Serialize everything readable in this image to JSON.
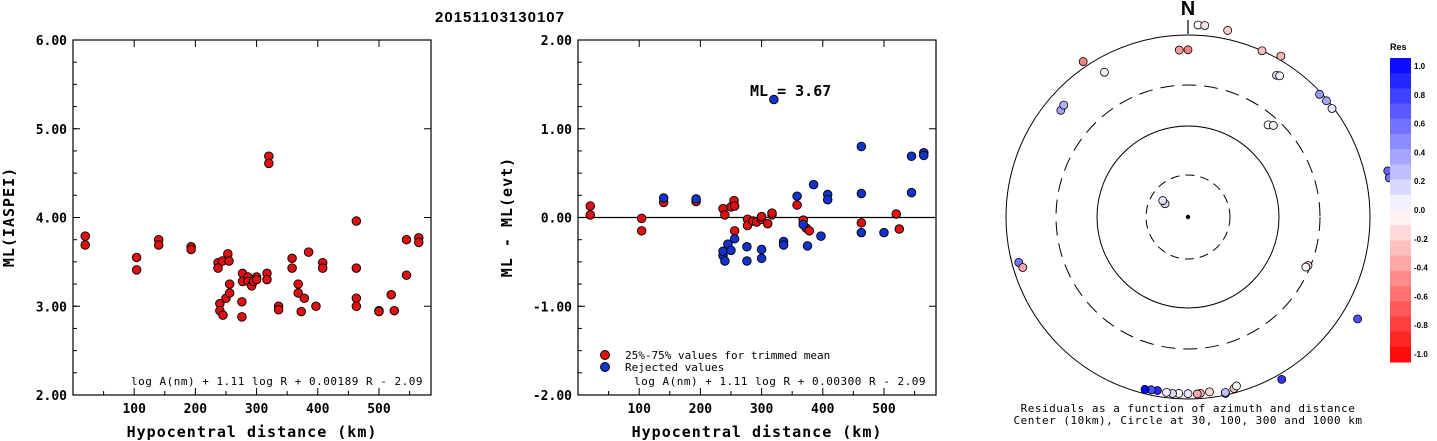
{
  "title": "20151103130107",
  "chart_data": [
    {
      "type": "scatter",
      "panel": "left",
      "xlabel": "Hypocentral distance (km)",
      "ylabel": "ML(IASPEI)",
      "xlim": [
        0,
        585
      ],
      "ylim": [
        2.0,
        6.0
      ],
      "xticks": [
        "100",
        "200",
        "300",
        "400",
        "500"
      ],
      "yticks": [
        "2.00",
        "3.00",
        "4.00",
        "5.00",
        "6.00"
      ],
      "formula": "log A(nm) + 1.11 log R + 0.00189 R - 2.09",
      "color": "#dd1111",
      "series": [
        {
          "points": [
            [
              20,
              3.79
            ],
            [
              20,
              3.69
            ],
            [
              104,
              3.55
            ],
            [
              104,
              3.41
            ],
            [
              140,
              3.75
            ],
            [
              140,
              3.69
            ],
            [
              193,
              3.67
            ],
            [
              193,
              3.64
            ],
            [
              237,
              3.49
            ],
            [
              237,
              3.43
            ],
            [
              240,
              3.03
            ],
            [
              240,
              2.95
            ],
            [
              244,
              3.51
            ],
            [
              245,
              2.9
            ],
            [
              250,
              3.09
            ],
            [
              253,
              3.59
            ],
            [
              255,
              3.51
            ],
            [
              256,
              3.25
            ],
            [
              256,
              3.15
            ],
            [
              276,
              3.05
            ],
            [
              276,
              2.88
            ],
            [
              277,
              3.37
            ],
            [
              277,
              3.28
            ],
            [
              286,
              3.33
            ],
            [
              286,
              3.28
            ],
            [
              292,
              3.23
            ],
            [
              295,
              3.28
            ],
            [
              300,
              3.33
            ],
            [
              300,
              3.3
            ],
            [
              317,
              3.37
            ],
            [
              317,
              3.3
            ],
            [
              320,
              4.69
            ],
            [
              320,
              4.61
            ],
            [
              336,
              3.0
            ],
            [
              336,
              2.96
            ],
            [
              358,
              3.54
            ],
            [
              358,
              3.43
            ],
            [
              368,
              3.25
            ],
            [
              368,
              3.15
            ],
            [
              373,
              2.94
            ],
            [
              378,
              3.09
            ],
            [
              385,
              3.61
            ],
            [
              397,
              3.0
            ],
            [
              408,
              3.49
            ],
            [
              408,
              3.43
            ],
            [
              463,
              3.96
            ],
            [
              463,
              3.43
            ],
            [
              463,
              3.09
            ],
            [
              463,
              3.0
            ],
            [
              500,
              2.95
            ],
            [
              500,
              2.94
            ],
            [
              520,
              3.13
            ],
            [
              525,
              2.95
            ],
            [
              545,
              3.75
            ],
            [
              545,
              3.35
            ],
            [
              565,
              3.77
            ],
            [
              565,
              3.72
            ]
          ]
        }
      ]
    },
    {
      "type": "scatter",
      "panel": "middle",
      "xlabel": "Hypocentral distance (km)",
      "ylabel": "ML - ML(evt)",
      "xlim": [
        0,
        585
      ],
      "ylim": [
        -2.0,
        2.0
      ],
      "xticks": [
        "100",
        "200",
        "300",
        "400",
        "500"
      ],
      "yticks": [
        "-2.00",
        "-1.00",
        "0.00",
        "1.00",
        "2.00"
      ],
      "reference_line": 0.0,
      "annotation": "ML = 3.67",
      "formula": "log A(nm) + 1.11 log R + 0.00300 R - 2.09",
      "series": [
        {
          "name": "25%-75% values for trimmed mean",
          "color": "#dd1111",
          "points": [
            [
              20,
              0.13
            ],
            [
              20,
              0.03
            ],
            [
              104,
              -0.01
            ],
            [
              104,
              -0.15
            ],
            [
              140,
              0.17
            ],
            [
              193,
              0.18
            ],
            [
              237,
              0.1
            ],
            [
              240,
              0.03
            ],
            [
              250,
              0.12
            ],
            [
              255,
              0.19
            ],
            [
              256,
              0.13
            ],
            [
              256,
              -0.15
            ],
            [
              277,
              -0.02
            ],
            [
              277,
              -0.09
            ],
            [
              286,
              -0.04
            ],
            [
              292,
              -0.05
            ],
            [
              300,
              -0.02
            ],
            [
              300,
              0.01
            ],
            [
              310,
              -0.07
            ],
            [
              317,
              0.03
            ],
            [
              317,
              0.05
            ],
            [
              358,
              0.14
            ],
            [
              368,
              -0.03
            ],
            [
              373,
              -0.12
            ],
            [
              378,
              -0.15
            ],
            [
              463,
              -0.06
            ],
            [
              520,
              0.04
            ],
            [
              525,
              -0.13
            ]
          ]
        },
        {
          "name": "Rejected values",
          "color": "#1133cc",
          "points": [
            [
              140,
              0.22
            ],
            [
              193,
              0.21
            ],
            [
              237,
              -0.43
            ],
            [
              237,
              -0.38
            ],
            [
              240,
              -0.49
            ],
            [
              245,
              -0.3
            ],
            [
              250,
              -0.37
            ],
            [
              256,
              -0.24
            ],
            [
              276,
              -0.33
            ],
            [
              276,
              -0.49
            ],
            [
              300,
              -0.36
            ],
            [
              300,
              -0.46
            ],
            [
              320,
              1.33
            ],
            [
              336,
              -0.27
            ],
            [
              336,
              -0.31
            ],
            [
              358,
              0.24
            ],
            [
              368,
              -0.08
            ],
            [
              375,
              -0.32
            ],
            [
              385,
              0.37
            ],
            [
              397,
              -0.21
            ],
            [
              408,
              0.26
            ],
            [
              408,
              0.2
            ],
            [
              463,
              0.8
            ],
            [
              463,
              0.27
            ],
            [
              463,
              -0.17
            ],
            [
              500,
              -0.17
            ],
            [
              545,
              0.69
            ],
            [
              545,
              0.28
            ],
            [
              565,
              0.73
            ],
            [
              565,
              0.7
            ]
          ]
        }
      ]
    },
    {
      "type": "scatter",
      "panel": "polar",
      "projection": "azimuth-distance",
      "north_label": "N",
      "caption_line1": "Residuals as a function of azimuth and distance",
      "caption_line2": "Center (10km), Circle at 30, 100, 300 and 1000 km",
      "colorbar_title": "Res",
      "colorbar_ticks": [
        "1.0",
        "0.8",
        "0.6",
        "0.4",
        "0.2",
        "0.0",
        "-0.2",
        "-0.4",
        "-0.6",
        "-0.8",
        "-1.0"
      ],
      "circles_km": [
        30,
        100,
        300,
        1000
      ],
      "points": [
        {
          "az": 3,
          "dist": 1300,
          "res": 0.0
        },
        {
          "az": 5,
          "dist": 1300,
          "res": -0.1
        },
        {
          "az": 12,
          "dist": 1250,
          "res": -0.2
        },
        {
          "az": 357,
          "dist": 700,
          "res": -0.4
        },
        {
          "az": 0,
          "dist": 700,
          "res": -0.5
        },
        {
          "az": 24,
          "dist": 1000,
          "res": -0.25
        },
        {
          "az": 30,
          "dist": 1100,
          "res": -0.3
        },
        {
          "az": 32,
          "dist": 700,
          "res": 0.15
        },
        {
          "az": 33,
          "dist": 720,
          "res": 0.05
        },
        {
          "az": 326,
          "dist": 1150,
          "res": -0.5
        },
        {
          "az": 330,
          "dist": 700,
          "res": 0.05
        },
        {
          "az": 47,
          "dist": 950,
          "res": 0.4
        },
        {
          "az": 50,
          "dist": 970,
          "res": 0.35
        },
        {
          "az": 53,
          "dist": 960,
          "res": 0.1
        },
        {
          "az": 41,
          "dist": 230,
          "res": 0.0
        },
        {
          "az": 43,
          "dist": 250,
          "res": -0.05
        },
        {
          "az": 310,
          "dist": 680,
          "res": 0.35
        },
        {
          "az": 312,
          "dist": 700,
          "res": 0.3
        },
        {
          "az": 300,
          "dist": 20,
          "res": 0.15
        },
        {
          "az": 303,
          "dist": 22,
          "res": 0.1
        },
        {
          "az": 77,
          "dist": 1800,
          "res": 0.6
        },
        {
          "az": 79,
          "dist": 1800,
          "res": 0.55
        },
        {
          "az": 112,
          "dist": 280,
          "res": -0.15
        },
        {
          "az": 113,
          "dist": 270,
          "res": 0.0
        },
        {
          "az": 121,
          "dist": 1500,
          "res": 0.7
        },
        {
          "az": 255,
          "dist": 850,
          "res": 0.55
        },
        {
          "az": 253,
          "dist": 800,
          "res": -0.35
        },
        {
          "az": 165,
          "dist": 900,
          "res": -0.25
        },
        {
          "az": 164,
          "dist": 860,
          "res": 0.0
        },
        {
          "az": 173,
          "dist": 870,
          "res": -0.15
        },
        {
          "az": 176,
          "dist": 880,
          "res": -0.3
        },
        {
          "az": 177,
          "dist": 890,
          "res": -0.35
        },
        {
          "az": 180,
          "dist": 880,
          "res": 0.1
        },
        {
          "az": 183,
          "dist": 880,
          "res": 0.0
        },
        {
          "az": 185,
          "dist": 890,
          "res": 0.15
        },
        {
          "az": 187,
          "dist": 880,
          "res": 0.05
        },
        {
          "az": 190,
          "dist": 870,
          "res": 0.85
        },
        {
          "az": 192,
          "dist": 880,
          "res": 0.7
        },
        {
          "az": 194,
          "dist": 900,
          "res": 1.0
        },
        {
          "az": 168,
          "dist": 960,
          "res": 0.2
        },
        {
          "az": 168,
          "dist": 940,
          "res": 0.25
        },
        {
          "az": 150,
          "dist": 1150,
          "res": 0.8
        }
      ]
    }
  ]
}
